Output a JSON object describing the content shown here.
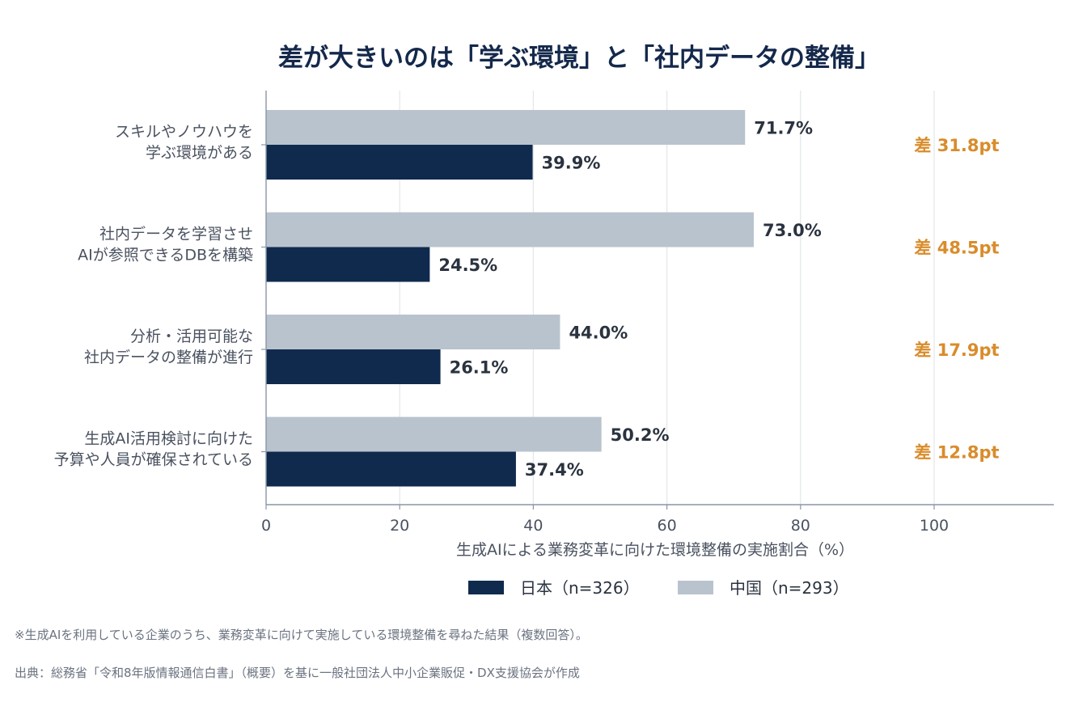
{
  "chart_data": {
    "type": "bar",
    "orientation": "horizontal",
    "title": "差が大きいのは「学ぶ環境」と「社内データの整備」",
    "xlabel": "生成AIによる業務変革に向けた環境整備の実施割合（%）",
    "xlim": [
      0,
      100
    ],
    "x_ticks": [
      "0",
      "20",
      "40",
      "60",
      "80",
      "100"
    ],
    "grid": "vertical",
    "categories": [
      [
        "スキルやノウハウを",
        "学ぶ環境がある"
      ],
      [
        "社内データを学習させ",
        "AIが参照できるDBを構築"
      ],
      [
        "分析・活用可能な",
        "社内データの整備が進行"
      ],
      [
        "生成AI活用検討に向けた",
        "予算や人員が確保されている"
      ]
    ],
    "series": [
      {
        "name": "中国（n=293）",
        "color": "#b9c3ce",
        "values": [
          71.7,
          73.0,
          44.0,
          50.2
        ],
        "labels": [
          "71.7%",
          "73.0%",
          "44.0%",
          "50.2%"
        ]
      },
      {
        "name": "日本（n=326）",
        "color": "#0f2a4d",
        "values": [
          39.9,
          24.5,
          26.1,
          37.4
        ],
        "labels": [
          "39.9%",
          "24.5%",
          "26.1%",
          "37.4%"
        ]
      }
    ],
    "differences": [
      "差 31.8pt",
      "差 48.5pt",
      "差 17.9pt",
      "差 12.8pt"
    ],
    "difference_color": "#d98c2b",
    "legend_position": "bottom-center",
    "legend_order": [
      "日本（n=326）",
      "中国（n=293）"
    ]
  },
  "notes": {
    "footnote": "※生成AIを利用している企業のうち、業務変革に向けて実施している環境整備を尋ねた結果（複数回答）。",
    "source": "出典：総務省「令和8年版情報通信白書」（概要）を基に一般社団法人中小企業販促・DX支援協会が作成"
  }
}
